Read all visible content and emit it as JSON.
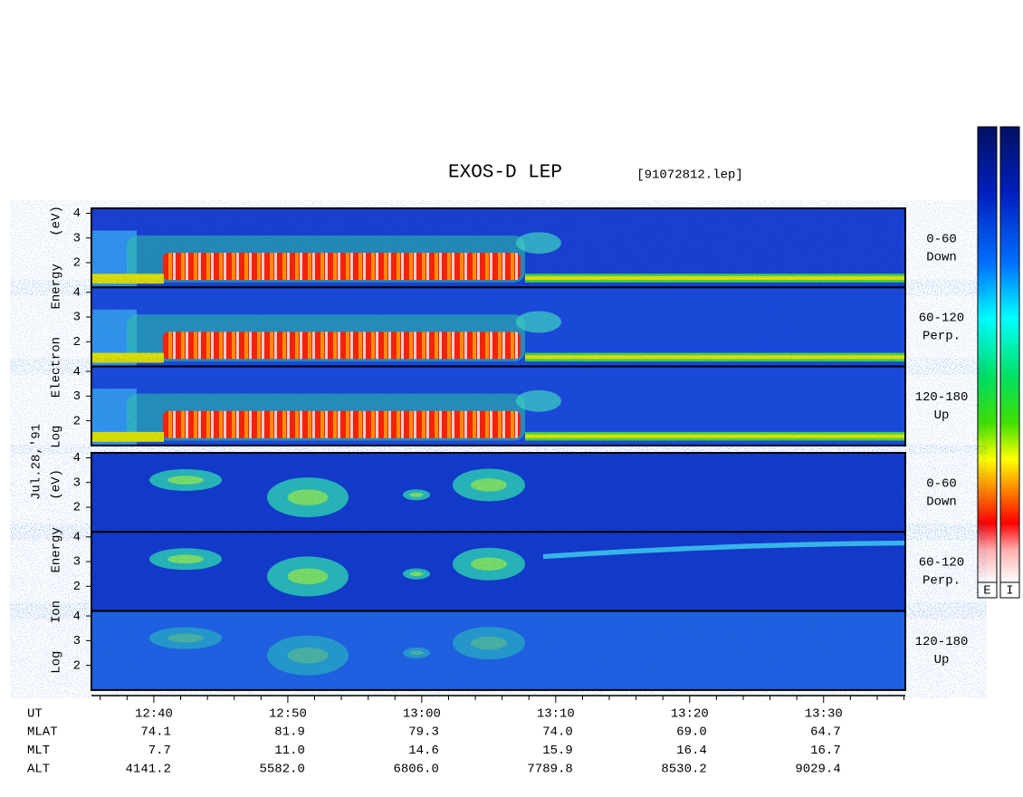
{
  "chart_data": {
    "type": "spectrogram",
    "title": "EXOS-D LEP",
    "file": "[91072812.lep]",
    "date": "Jul.28,'91",
    "xlim": [
      755.34,
      816.1
    ],
    "xticks": [
      {
        "value": 760,
        "label": "12:40"
      },
      {
        "value": 770,
        "label": "12:50"
      },
      {
        "value": 780,
        "label": "13:00"
      },
      {
        "value": 790,
        "label": "13:10"
      },
      {
        "value": 800,
        "label": "13:20"
      },
      {
        "value": 810,
        "label": "13:30"
      }
    ],
    "xminor": [
      756,
      758,
      762,
      764,
      766,
      768,
      772,
      774,
      776,
      778,
      782,
      784,
      786,
      788,
      792,
      794,
      796,
      798,
      802,
      804,
      806,
      808,
      812,
      814,
      816
    ],
    "x_label": "UT",
    "groups": [
      {
        "label": "Log Electron Energy (eV)",
        "kind": "electron",
        "ylim": [
          1,
          4.2
        ],
        "yticks": [
          2,
          3,
          4
        ],
        "panels": [
          {
            "angle": "0-60",
            "direction": "Down"
          },
          {
            "angle": "60-120",
            "direction": "Perp."
          },
          {
            "angle": "120-180",
            "direction": "Up"
          }
        ]
      },
      {
        "label": "Log Ion Energy (eV)",
        "kind": "ion",
        "ylim": [
          1,
          4.2
        ],
        "yticks": [
          2,
          3,
          4
        ],
        "panels": [
          {
            "angle": "0-60",
            "direction": "Down"
          },
          {
            "angle": "60-120",
            "direction": "Perp."
          },
          {
            "angle": "120-180",
            "direction": "Up"
          }
        ]
      }
    ],
    "footer": [
      {
        "name": "MLAT",
        "values": [
          "74.1",
          "81.9",
          "79.3",
          "74.0",
          "69.0",
          "64.7"
        ]
      },
      {
        "name": "MLT",
        "values": [
          "7.7",
          "11.0",
          "14.6",
          "15.9",
          "16.4",
          "16.7"
        ]
      },
      {
        "name": "ALT",
        "values": [
          "4141.2",
          "5582.0",
          "6806.0",
          "7789.8",
          "8530.2",
          "9029.4"
        ]
      }
    ],
    "colorbar_labels": [
      "E",
      "I"
    ]
  }
}
